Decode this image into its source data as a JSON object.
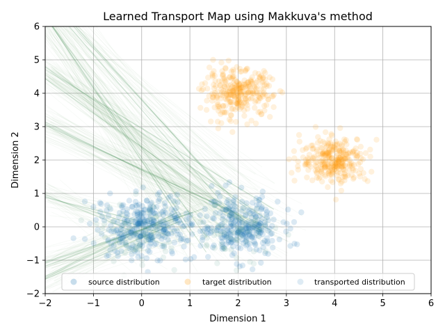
{
  "chart_data": {
    "type": "scatter",
    "title": "Learned Transport Map using Makkuva's method",
    "xlabel": "Dimension 1",
    "ylabel": "Dimension 2",
    "xlim": [
      -2,
      6
    ],
    "ylim": [
      -2,
      6
    ],
    "xticks": [
      "−2",
      "−1",
      "0",
      "1",
      "2",
      "3",
      "4",
      "5",
      "6"
    ],
    "yticks": [
      "−2",
      "−1",
      "0",
      "1",
      "2",
      "3",
      "4",
      "5",
      "6"
    ],
    "grid": true,
    "legend_position": "bottom-center",
    "series": [
      {
        "name": "source distribution",
        "color": "#1f77b4",
        "clusters": [
          {
            "center": [
              0,
              0
            ],
            "spread": 0.45,
            "count": 300
          },
          {
            "center": [
              2,
              0
            ],
            "spread": 0.45,
            "count": 300
          }
        ]
      },
      {
        "name": "target distribution",
        "color": "#ff9f10",
        "clusters": [
          {
            "center": [
              2,
              4
            ],
            "spread": 0.35,
            "count": 300
          },
          {
            "center": [
              4,
              2
            ],
            "spread": 0.35,
            "count": 300
          }
        ]
      },
      {
        "name": "transported distribution",
        "color": "#3d8a4f",
        "note_lines": "many transport lines from source points toward upper-left"
      }
    ],
    "transport_line_bundles": [
      {
        "from": [
          1.3,
          -0.3
        ],
        "to": [
          -2.0,
          6.2
        ],
        "count": 60
      },
      {
        "from": [
          2.3,
          0.2
        ],
        "to": [
          -2.0,
          4.7
        ],
        "count": 80
      },
      {
        "from": [
          2.6,
          -0.2
        ],
        "to": [
          -2.0,
          3.0
        ],
        "count": 60
      },
      {
        "from": [
          1.8,
          1.2
        ],
        "to": [
          -1.5,
          6.2
        ],
        "count": 40
      },
      {
        "from": [
          0.5,
          -0.3
        ],
        "to": [
          -2.0,
          0.9
        ],
        "count": 40
      },
      {
        "from": [
          1.0,
          0.4
        ],
        "to": [
          -2.0,
          -1.1
        ],
        "count": 40
      },
      {
        "from": [
          0.8,
          0.3
        ],
        "to": [
          -2.0,
          -1.6
        ],
        "count": 40
      }
    ]
  }
}
